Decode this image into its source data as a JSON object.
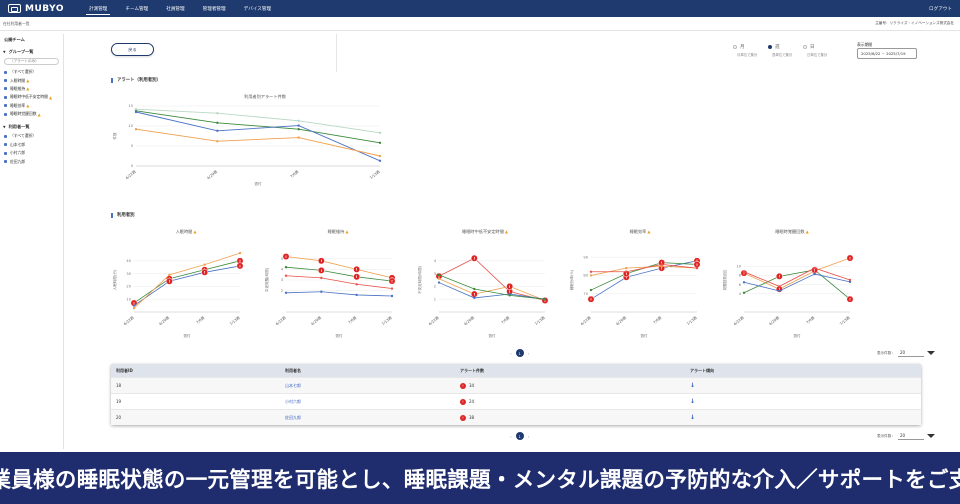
{
  "header": {
    "logo": "MUBYO",
    "nav": [
      {
        "label": "計測管理",
        "active": true
      },
      {
        "label": "チーム管理",
        "active": false
      },
      {
        "label": "社員管理",
        "active": false
      },
      {
        "label": "管理者管理",
        "active": false
      },
      {
        "label": "デバイス管理",
        "active": false
      }
    ],
    "logout": "ログアウト"
  },
  "breadcrumb": "在社利用者一覧",
  "user_info": "主番号：リクライズ・イノベーションズ株式会社",
  "sidebar": {
    "section": "公開チーム",
    "groups_header": "グループ一覧",
    "search_placeholder": "（アラートのみ）",
    "groups": [
      {
        "label": "（すべて選択）",
        "warn": false
      },
      {
        "label": "入眠時間",
        "warn": true
      },
      {
        "label": "睡眠維持",
        "warn": true
      },
      {
        "label": "睡眠時中低不安定時間",
        "warn": true
      },
      {
        "label": "睡眠効率",
        "warn": true
      },
      {
        "label": "睡眠時覚醒回数",
        "warn": true
      }
    ],
    "users_header": "利用者一覧",
    "users": [
      {
        "label": "（すべて選択）"
      },
      {
        "label": "山本七郎"
      },
      {
        "label": "小村六郎"
      },
      {
        "label": "佐田九郎"
      }
    ]
  },
  "controls": {
    "back_label": "戻る",
    "periods": [
      {
        "label": "月",
        "sub": "月単位で集計",
        "selected": false
      },
      {
        "label": "週",
        "sub": "週単位で集計",
        "selected": true
      },
      {
        "label": "日",
        "sub": "日単位で集計",
        "selected": false
      }
    ],
    "range_label": "表示期間",
    "range_value": "2025/6/22 ~ 2025/7/19"
  },
  "alert_section": {
    "title": "アラート（利用者別）",
    "chart_title": "利用者別アラート件数",
    "xlabel": "週付",
    "ylabel": "件数"
  },
  "user_section": {
    "title": "利用者別"
  },
  "chart_data": [
    {
      "type": "line",
      "title": "利用者別アラート件数",
      "xlabel": "週付",
      "ylabel": "件数",
      "categories": [
        "6/22週",
        "6/29週",
        "7/6週",
        "7/13週"
      ],
      "ylim": [
        0,
        15
      ],
      "yticks": [
        0,
        5,
        10,
        15
      ],
      "series": [
        {
          "color": "#3a8a3a",
          "values": [
            13.8,
            10.8,
            9.2,
            5.8
          ]
        },
        {
          "color": "#4a72c4",
          "values": [
            13.5,
            8.8,
            10.1,
            1.3
          ]
        },
        {
          "color": "#f0a050",
          "values": [
            9.2,
            6.2,
            7.1,
            2.5
          ]
        },
        {
          "color": "#b9d7c5",
          "values": [
            14.2,
            13.2,
            11.3,
            8.3
          ]
        }
      ]
    },
    {
      "type": "line",
      "title": "入眠時間",
      "xlabel": "週付",
      "ylabel": "入眠時間(分)",
      "categories": [
        "6/22週",
        "6/29週",
        "7/6週",
        "7/13週"
      ],
      "ylim": [
        0,
        50
      ],
      "yticks": [
        10,
        20,
        30,
        40
      ],
      "series": [
        {
          "color": "#3a8a3a",
          "values": [
            7,
            26,
            33,
            40
          ]
        },
        {
          "color": "#4a72c4",
          "values": [
            5,
            24,
            31,
            36
          ]
        },
        {
          "color": "#f0a050",
          "values": [
            3,
            29,
            37,
            46
          ]
        }
      ]
    },
    {
      "type": "line",
      "title": "睡眠維持",
      "xlabel": "週付",
      "ylabel": "中途覚醒(時間)",
      "categories": [
        "6/22週",
        "6/29週",
        "7/6週",
        "7/13週"
      ],
      "ylim": [
        0,
        6
      ],
      "yticks": [
        2,
        3,
        4,
        5
      ],
      "series": [
        {
          "color": "#f0a050",
          "values": [
            5.2,
            4.8,
            4.0,
            3.2
          ]
        },
        {
          "color": "#3a8a3a",
          "values": [
            4.2,
            3.9,
            3.3,
            2.9
          ]
        },
        {
          "color": "#e8504a",
          "values": [
            3.4,
            3.2,
            2.6,
            2.2
          ]
        },
        {
          "color": "#4a72c4",
          "values": [
            1.8,
            1.9,
            1.6,
            1.5
          ]
        }
      ]
    },
    {
      "type": "line",
      "title": "睡眠時中低不安定時間",
      "xlabel": "週付",
      "ylabel": "不安定時間(時間)",
      "categories": [
        "6/22週",
        "6/29週",
        "7/6週",
        "7/13週"
      ],
      "ylim": [
        0,
        5
      ],
      "yticks": [
        1,
        2,
        3,
        4
      ],
      "series": [
        {
          "color": "#e8504a",
          "values": [
            2.8,
            4.2,
            1.6,
            0.9
          ]
        },
        {
          "color": "#f0a050",
          "values": [
            2.6,
            1.4,
            2.0,
            0.9
          ]
        },
        {
          "color": "#4a72c4",
          "values": [
            2.3,
            1.1,
            1.4,
            1.0
          ]
        },
        {
          "color": "#3a8a3a",
          "values": [
            2.9,
            1.8,
            1.3,
            1.0
          ]
        }
      ]
    },
    {
      "type": "line",
      "title": "睡眠効率",
      "xlabel": "週付",
      "ylabel": "睡眠効率(%)",
      "categories": [
        "6/22週",
        "6/29週",
        "7/6週",
        "7/13週"
      ],
      "ylim": [
        60,
        95
      ],
      "yticks": [
        70,
        80,
        90
      ],
      "series": [
        {
          "color": "#4a72c4",
          "values": [
            67,
            79,
            84,
            88
          ]
        },
        {
          "color": "#3a8a3a",
          "values": [
            72,
            81,
            87,
            86
          ]
        },
        {
          "color": "#f0a050",
          "values": [
            80,
            84,
            85,
            84
          ]
        },
        {
          "color": "#e8504a",
          "values": [
            82,
            82,
            86,
            84
          ]
        }
      ]
    },
    {
      "type": "line",
      "title": "睡眠時覚醒回数",
      "xlabel": "週付",
      "ylabel": "覚醒回数(回)",
      "categories": [
        "6/22週",
        "6/29週",
        "7/6週",
        "7/13週"
      ],
      "ylim": [
        0,
        14
      ],
      "yticks": [
        4,
        6,
        8,
        10
      ],
      "series": [
        {
          "color": "#f0a050",
          "values": [
            8.5,
            5.0,
            9.0,
            11.8
          ]
        },
        {
          "color": "#3a8a3a",
          "values": [
            4.2,
            7.8,
            9.2,
            2.8
          ]
        },
        {
          "color": "#4a72c4",
          "values": [
            6.5,
            4.6,
            8.3,
            6.6
          ]
        },
        {
          "color": "#e8504a",
          "values": [
            8.8,
            5.6,
            9.6,
            7.0
          ]
        }
      ]
    }
  ],
  "pager": {
    "current": "1",
    "prev": "‹",
    "next": "›",
    "perpage_label": "表示件数：",
    "perpage_value": "20"
  },
  "table": {
    "headers": [
      "利用者ID",
      "利用者名",
      "アラート件数",
      "アラート傾向"
    ],
    "rows": [
      {
        "id": "18",
        "name": "山本七郎",
        "alerts": "34"
      },
      {
        "id": "19",
        "name": "小村六郎",
        "alerts": "24"
      },
      {
        "id": "20",
        "name": "佐田九郎",
        "alerts": "38"
      }
    ]
  },
  "banner": "従業員様の睡眠状態の一元管理を可能とし、睡眠課題・メンタル課題の予防的な介入／サポートをご支援"
}
